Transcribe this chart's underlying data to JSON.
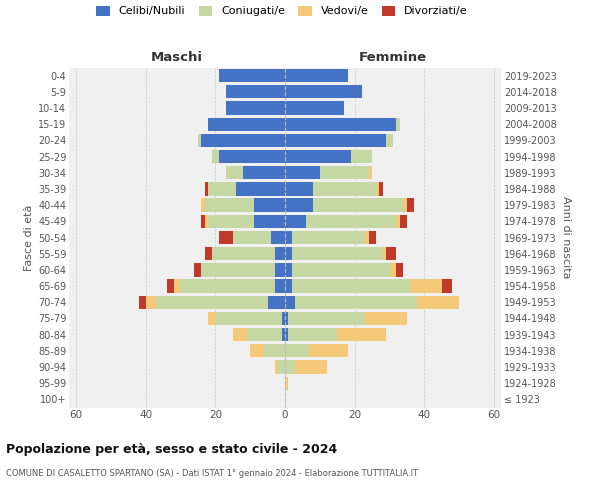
{
  "age_groups": [
    "100+",
    "95-99",
    "90-94",
    "85-89",
    "80-84",
    "75-79",
    "70-74",
    "65-69",
    "60-64",
    "55-59",
    "50-54",
    "45-49",
    "40-44",
    "35-39",
    "30-34",
    "25-29",
    "20-24",
    "15-19",
    "10-14",
    "5-9",
    "0-4"
  ],
  "birth_years": [
    "≤ 1923",
    "1924-1928",
    "1929-1933",
    "1934-1938",
    "1939-1943",
    "1944-1948",
    "1949-1953",
    "1954-1958",
    "1959-1963",
    "1964-1968",
    "1969-1973",
    "1974-1978",
    "1979-1983",
    "1984-1988",
    "1989-1993",
    "1994-1998",
    "1999-2003",
    "2004-2008",
    "2009-2013",
    "2014-2018",
    "2019-2023"
  ],
  "male_celibi": [
    0,
    0,
    0,
    0,
    1,
    1,
    5,
    3,
    3,
    3,
    4,
    9,
    9,
    14,
    12,
    19,
    24,
    22,
    17,
    17,
    19
  ],
  "male_coniugati": [
    0,
    0,
    2,
    6,
    10,
    19,
    32,
    27,
    21,
    18,
    11,
    13,
    14,
    8,
    5,
    2,
    1,
    0,
    0,
    0,
    0
  ],
  "male_vedovi": [
    0,
    0,
    1,
    4,
    4,
    2,
    3,
    2,
    0,
    0,
    0,
    1,
    1,
    0,
    0,
    0,
    0,
    0,
    0,
    0,
    0
  ],
  "male_divorziati": [
    0,
    0,
    0,
    0,
    0,
    0,
    2,
    2,
    2,
    2,
    4,
    1,
    0,
    1,
    0,
    0,
    0,
    0,
    0,
    0,
    0
  ],
  "female_celibi": [
    0,
    0,
    0,
    0,
    1,
    1,
    3,
    2,
    2,
    2,
    2,
    6,
    8,
    8,
    10,
    19,
    29,
    32,
    17,
    22,
    18
  ],
  "female_coniugati": [
    0,
    0,
    3,
    7,
    14,
    22,
    35,
    34,
    28,
    26,
    21,
    26,
    26,
    18,
    14,
    6,
    2,
    1,
    0,
    0,
    0
  ],
  "female_vedovi": [
    0,
    1,
    9,
    11,
    14,
    12,
    12,
    9,
    2,
    1,
    1,
    1,
    1,
    1,
    1,
    0,
    0,
    0,
    0,
    0,
    0
  ],
  "female_divorziati": [
    0,
    0,
    0,
    0,
    0,
    0,
    0,
    3,
    2,
    3,
    2,
    2,
    2,
    1,
    0,
    0,
    0,
    0,
    0,
    0,
    0
  ],
  "color_celibi": "#4472C4",
  "color_coniugati": "#c5d8a4",
  "color_vedovi": "#f5c97a",
  "color_divorziati": "#c0392b",
  "title": "Popolazione per età, sesso e stato civile - 2024",
  "subtitle": "COMUNE DI CASALETTO SPARTANO (SA) - Dati ISTAT 1° gennaio 2024 - Elaborazione TUTTITALIA.IT",
  "xlabel_left": "Maschi",
  "xlabel_right": "Femmine",
  "ylabel_left": "Fasce di età",
  "ylabel_right": "Anni di nascita",
  "bg_color": "#ffffff",
  "plot_bg_color": "#f0f0f0"
}
